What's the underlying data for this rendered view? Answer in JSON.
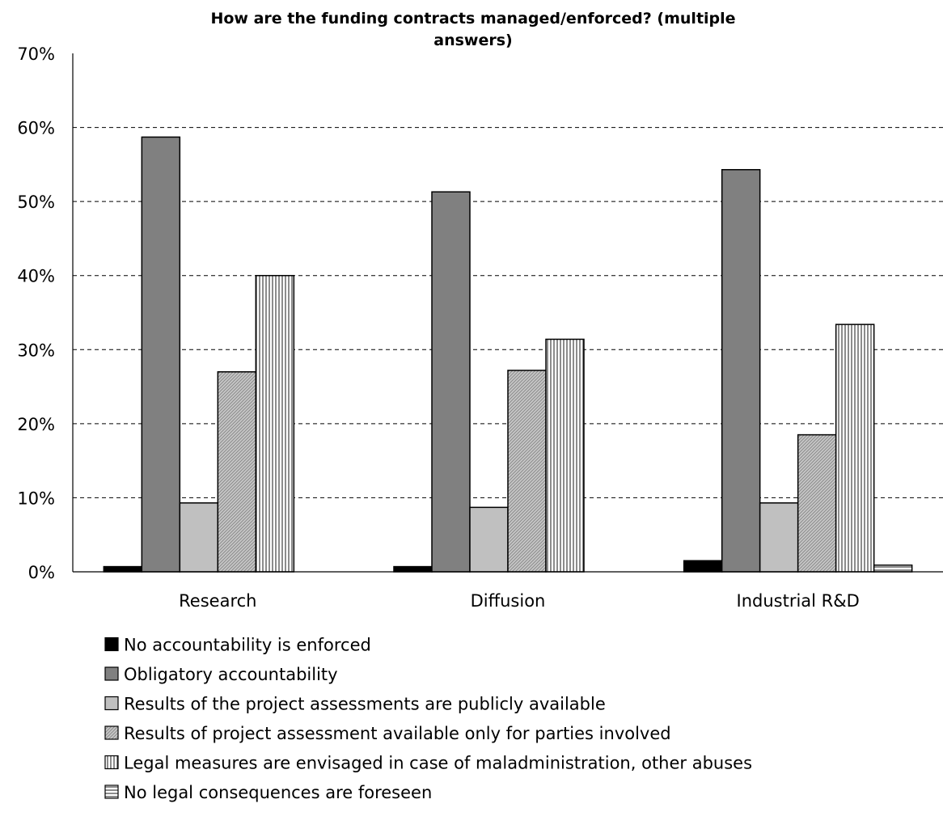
{
  "chart_data": {
    "type": "bar",
    "title_lines": [
      "How are the funding contracts managed/enforced? (multiple",
      "answers)"
    ],
    "categories": [
      "Research",
      "Diffusion",
      "Industrial R&D"
    ],
    "ylim": [
      0,
      70
    ],
    "yticks": [
      0,
      10,
      20,
      30,
      40,
      50,
      60,
      70
    ],
    "ytick_labels": [
      "0%",
      "10%",
      "20%",
      "30%",
      "40%",
      "50%",
      "60%",
      "70%"
    ],
    "grid": "horizontal dashed",
    "legend_position": "bottom",
    "series": [
      {
        "name": "No accountability is enforced",
        "values": [
          0.7,
          0.7,
          1.5
        ],
        "color": "#000000",
        "pattern": "solid"
      },
      {
        "name": "Obligatory accountability",
        "values": [
          58.7,
          51.3,
          54.3
        ],
        "color": "#808080",
        "pattern": "solid"
      },
      {
        "name": "Results of the project assessments are publicly available",
        "values": [
          9.3,
          8.7,
          9.3
        ],
        "color": "#c0c0c0",
        "pattern": "solid"
      },
      {
        "name": "Results of project assessment available only for parties involved",
        "values": [
          27.0,
          27.2,
          18.5
        ],
        "color": "#c0c0c0",
        "pattern": "diagonal"
      },
      {
        "name": "Legal measures are envisaged in case of maladministration, other abuses",
        "values": [
          40.0,
          31.4,
          33.4
        ],
        "color": "#ffffff",
        "pattern": "vertical"
      },
      {
        "name": "No legal consequences are foreseen",
        "values": [
          0,
          0,
          0.9
        ],
        "color": "#ffffff",
        "pattern": "horizontal"
      }
    ]
  }
}
